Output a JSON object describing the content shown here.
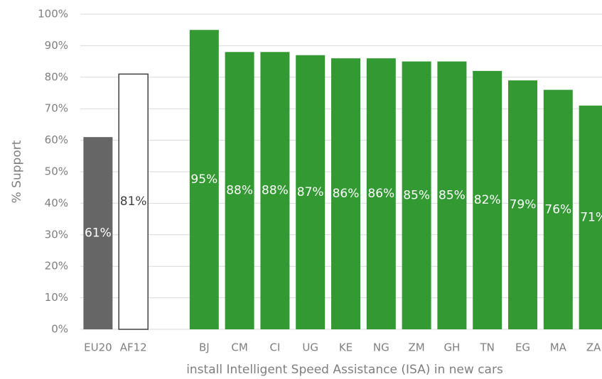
{
  "chart_data": {
    "type": "bar",
    "x_label": "install Intelligent Speed Assistance (ISA) in new cars",
    "y_label": "% Support",
    "categories": [
      "EU20",
      "AF12",
      null,
      "BJ",
      "CM",
      "CI",
      "UG",
      "KE",
      "NG",
      "ZM",
      "GH",
      "TN",
      "EG",
      "MA",
      "ZA"
    ],
    "values": [
      61,
      81,
      null,
      95,
      88,
      88,
      87,
      86,
      86,
      85,
      85,
      82,
      79,
      76,
      71
    ],
    "value_labels": [
      "61%",
      "81%",
      null,
      "95%",
      "88%",
      "88%",
      "87%",
      "86%",
      "86%",
      "85%",
      "85%",
      "82%",
      "79%",
      "76%",
      "71%"
    ],
    "colors": [
      "#666666",
      "#ffffff",
      null,
      "#339933",
      "#339933",
      "#339933",
      "#339933",
      "#339933",
      "#339933",
      "#339933",
      "#339933",
      "#339933",
      "#339933",
      "#339933",
      "#339933"
    ],
    "edge_colors": [
      null,
      "#404040",
      null,
      null,
      null,
      null,
      null,
      null,
      null,
      null,
      null,
      null,
      null,
      null,
      null
    ],
    "ylim": [
      0,
      100
    ],
    "yticks": [
      {
        "value": 0,
        "label": "0%"
      },
      {
        "value": 10,
        "label": "10%"
      },
      {
        "value": 20,
        "label": "20%"
      },
      {
        "value": 30,
        "label": "30%"
      },
      {
        "value": 40,
        "label": "40%"
      },
      {
        "value": 50,
        "label": "50%"
      },
      {
        "value": 60,
        "label": "60%"
      },
      {
        "value": 70,
        "label": "70%"
      },
      {
        "value": 80,
        "label": "80%"
      },
      {
        "value": 90,
        "label": "90%"
      },
      {
        "value": 100,
        "label": "100%"
      }
    ],
    "grid": true
  }
}
